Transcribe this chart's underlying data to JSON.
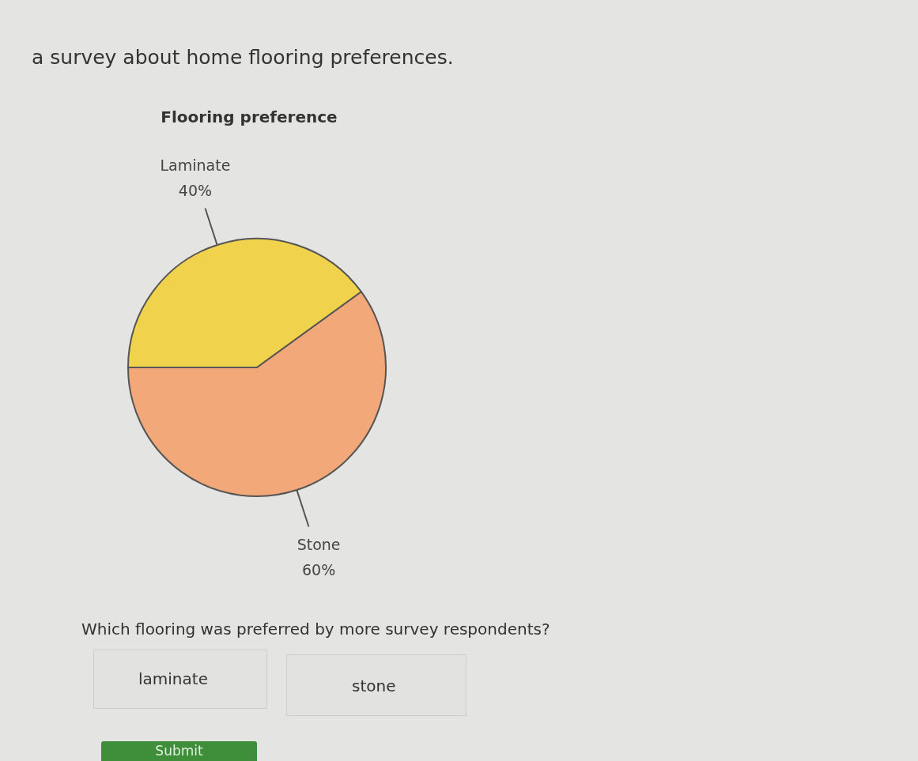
{
  "chart_data": {
    "type": "pie",
    "title": "Flooring preference",
    "categories": [
      "Laminate",
      "Stone"
    ],
    "values": [
      40,
      60
    ],
    "colors": [
      "#f0d24c",
      "#f2a878"
    ],
    "value_labels": [
      "40%",
      "60%"
    ],
    "annotations": [
      "a survey about home flooring preferences.",
      "Which flooring was preferred by more survey respondents?",
      "laminate",
      "stone",
      "Submit"
    ]
  }
}
